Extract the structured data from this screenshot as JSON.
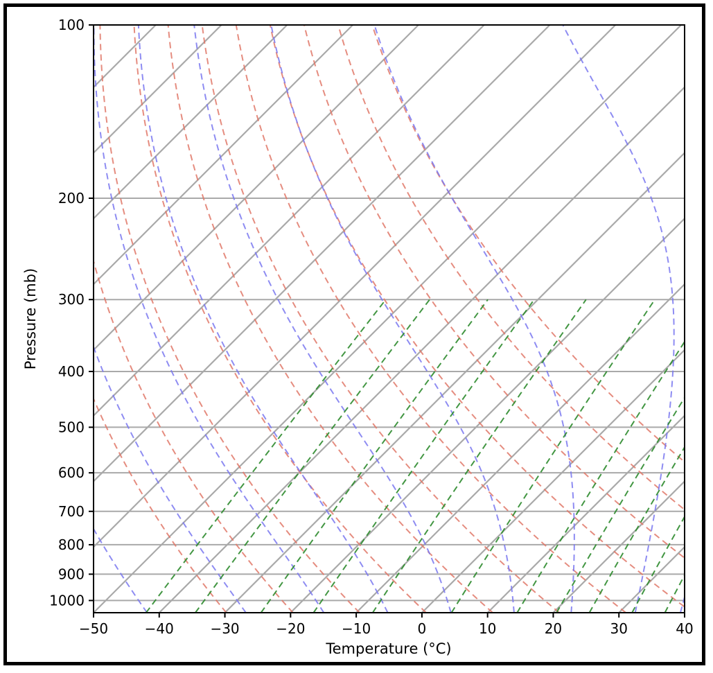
{
  "chart_data": {
    "type": "line",
    "xlabel": "Temperature (°C)",
    "ylabel": "Pressure (mb)",
    "xlim": [
      -50,
      40
    ],
    "ylim": [
      1050,
      100
    ],
    "y_scale": "log",
    "x_ticks": [
      -50,
      -40,
      -30,
      -20,
      -10,
      0,
      10,
      20,
      30,
      40
    ],
    "x_tick_labels": [
      "−50",
      "−40",
      "−30",
      "−20",
      "−10",
      "0",
      "10",
      "20",
      "30",
      "40"
    ],
    "y_ticks": [
      100,
      200,
      300,
      400,
      500,
      600,
      700,
      800,
      900,
      1000
    ],
    "y_tick_labels": [
      "100",
      "200",
      "300",
      "400",
      "500",
      "600",
      "700",
      "800",
      "900",
      "1000"
    ],
    "grid": true,
    "series": [
      {
        "kind": "isotherms",
        "style": "solid",
        "color": "#a9a9a9",
        "values_celsius": [
          -130,
          -120,
          -110,
          -100,
          -90,
          -80,
          -70,
          -60,
          -50,
          -40,
          -30,
          -20,
          -10,
          0,
          10,
          20,
          30,
          40
        ]
      },
      {
        "kind": "dry_adiabats",
        "style": "dashed",
        "color": "#e07868",
        "values_kelvin": [
          240,
          250,
          260,
          270,
          280,
          290,
          300,
          310,
          320,
          330,
          340
        ]
      },
      {
        "kind": "moist_adiabats",
        "style": "dashed",
        "color": "#7a78f0",
        "start_celsius_at_1000mb": [
          -45,
          -30,
          -18,
          -8,
          2,
          12,
          21,
          31,
          38
        ],
        "top_pressure": 100
      },
      {
        "kind": "mixing_ratio_lines",
        "style": "dashed",
        "color": "#2e8b2e",
        "bottom_temp_celsius_at_1050mb": [
          -42,
          -34.5,
          -24.5,
          -16.5,
          -7.5,
          4.5,
          14.5,
          20.5,
          25.5,
          32,
          37
        ],
        "top_pressure": 300
      }
    ]
  }
}
